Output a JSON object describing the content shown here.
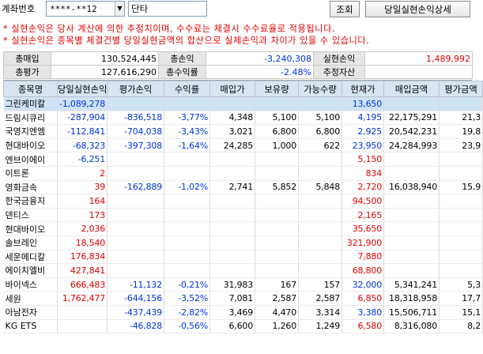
{
  "header": {
    "account_label": "계좌번호",
    "account_number": "****-**12",
    "account_name": "단타",
    "query_button": "조회",
    "detail_button": "당일실현손익상세"
  },
  "notices": [
    "* 실현손익은 당사 계산에 의한 추정치이며, 수수료는 체결시 수수료율로 적용됩니다.",
    "* 실현손익은 종목별 체결건별 당일실현금액의 합산으로 실제손익과 차이가 있을 수 있습니다."
  ],
  "summary": {
    "total_buy_label": "총매입",
    "total_buy": "130,524,445",
    "total_pl_label": "총손익",
    "total_pl": "-3,240,308",
    "realized_pl_label": "실현손익",
    "realized_pl": "1,489,992",
    "total_eval_label": "총평가",
    "total_eval": "127,616,290",
    "total_return_label": "총수익률",
    "total_return": "-2.48%",
    "est_asset_label": "추정자산",
    "est_asset": ""
  },
  "columns": [
    "종목명",
    "당일실현손익",
    "평가손익",
    "수익률",
    "매입가",
    "보유량",
    "가능수량",
    "현재가",
    "매입금액",
    "평가금액"
  ],
  "rows": [
    {
      "name": "그린케미칼",
      "realized": "-1,089,278",
      "eval_pl": "",
      "ret": "",
      "buy_price": "",
      "qty": "",
      "avail": "",
      "cur": "13,650",
      "buy_amt": "",
      "eval_amt": "",
      "rc": "blue",
      "ec": "blk",
      "cc": "blue",
      "selected": true
    },
    {
      "name": "드림시큐리",
      "realized": "-287,904",
      "eval_pl": "-836,518",
      "ret": "-3,77%",
      "buy_price": "4,348",
      "qty": "5,100",
      "avail": "5,100",
      "cur": "4,195",
      "buy_amt": "22,175,291",
      "eval_amt": "21,3",
      "rc": "blue",
      "ec": "blue",
      "cc": "blue",
      "selected": false
    },
    {
      "name": "국영지엔엠",
      "realized": "-112,841",
      "eval_pl": "-704,038",
      "ret": "-3,43%",
      "buy_price": "3,021",
      "qty": "6,800",
      "avail": "6,800",
      "cur": "2,925",
      "buy_amt": "20,542,231",
      "eval_amt": "19,8",
      "rc": "blue",
      "ec": "blue",
      "cc": "blue",
      "selected": false
    },
    {
      "name": "현대바이오",
      "realized": "-68,323",
      "eval_pl": "-397,308",
      "ret": "-1,64%",
      "buy_price": "24,285",
      "qty": "1,000",
      "avail": "622",
      "cur": "23,950",
      "buy_amt": "24,284,993",
      "eval_amt": "23,9",
      "rc": "blue",
      "ec": "blue",
      "cc": "blue",
      "selected": false
    },
    {
      "name": "엔브이에이",
      "realized": "-6,251",
      "eval_pl": "",
      "ret": "",
      "buy_price": "",
      "qty": "",
      "avail": "",
      "cur": "5,150",
      "buy_amt": "",
      "eval_amt": "",
      "rc": "blue",
      "ec": "blk",
      "cc": "red",
      "selected": false
    },
    {
      "name": "이트론",
      "realized": "2",
      "eval_pl": "",
      "ret": "",
      "buy_price": "",
      "qty": "",
      "avail": "",
      "cur": "834",
      "buy_amt": "",
      "eval_amt": "",
      "rc": "red",
      "ec": "blk",
      "cc": "red",
      "selected": false
    },
    {
      "name": "영화금속",
      "realized": "39",
      "eval_pl": "-162,889",
      "ret": "-1,02%",
      "buy_price": "2,741",
      "qty": "5,852",
      "avail": "5,848",
      "cur": "2,720",
      "buy_amt": "16,038,940",
      "eval_amt": "15,9",
      "rc": "red",
      "ec": "blue",
      "cc": "red",
      "selected": false
    },
    {
      "name": "한국금융지",
      "realized": "164",
      "eval_pl": "",
      "ret": "",
      "buy_price": "",
      "qty": "",
      "avail": "",
      "cur": "94,500",
      "buy_amt": "",
      "eval_amt": "",
      "rc": "red",
      "ec": "blk",
      "cc": "red",
      "selected": false
    },
    {
      "name": "덴티스",
      "realized": "173",
      "eval_pl": "",
      "ret": "",
      "buy_price": "",
      "qty": "",
      "avail": "",
      "cur": "2,165",
      "buy_amt": "",
      "eval_amt": "",
      "rc": "red",
      "ec": "blk",
      "cc": "red",
      "selected": false
    },
    {
      "name": "현대바이오",
      "realized": "2,036",
      "eval_pl": "",
      "ret": "",
      "buy_price": "",
      "qty": "",
      "avail": "",
      "cur": "35,650",
      "buy_amt": "",
      "eval_amt": "",
      "rc": "red",
      "ec": "blk",
      "cc": "red",
      "selected": false
    },
    {
      "name": "솔브레인",
      "realized": "18,540",
      "eval_pl": "",
      "ret": "",
      "buy_price": "",
      "qty": "",
      "avail": "",
      "cur": "321,900",
      "buy_amt": "",
      "eval_amt": "",
      "rc": "red",
      "ec": "blk",
      "cc": "red",
      "selected": false
    },
    {
      "name": "세운메디칼",
      "realized": "176,834",
      "eval_pl": "",
      "ret": "",
      "buy_price": "",
      "qty": "",
      "avail": "",
      "cur": "7,880",
      "buy_amt": "",
      "eval_amt": "",
      "rc": "red",
      "ec": "blk",
      "cc": "red",
      "selected": false
    },
    {
      "name": "에이치엘비",
      "realized": "427,841",
      "eval_pl": "",
      "ret": "",
      "buy_price": "",
      "qty": "",
      "avail": "",
      "cur": "68,800",
      "buy_amt": "",
      "eval_amt": "",
      "rc": "red",
      "ec": "blk",
      "cc": "red",
      "selected": false
    },
    {
      "name": "바이넥스",
      "realized": "666,483",
      "eval_pl": "-11,132",
      "ret": "-0,21%",
      "buy_price": "31,983",
      "qty": "167",
      "avail": "157",
      "cur": "32,000",
      "buy_amt": "5,341,241",
      "eval_amt": "5,3",
      "rc": "red",
      "ec": "blue",
      "cc": "blue",
      "selected": false
    },
    {
      "name": "세원",
      "realized": "1,762,477",
      "eval_pl": "-644,156",
      "ret": "-3,52%",
      "buy_price": "7,081",
      "qty": "2,587",
      "avail": "2,587",
      "cur": "6,850",
      "buy_amt": "18,318,958",
      "eval_amt": "17,7",
      "rc": "red",
      "ec": "blue",
      "cc": "red",
      "selected": false
    },
    {
      "name": "아남전자",
      "realized": "",
      "eval_pl": "-437,439",
      "ret": "-2,82%",
      "buy_price": "3,469",
      "qty": "4,470",
      "avail": "3,314",
      "cur": "3,380",
      "buy_amt": "15,506,711",
      "eval_amt": "15,1",
      "rc": "blk",
      "ec": "blue",
      "cc": "blue",
      "selected": false
    },
    {
      "name": "KG ETS",
      "realized": "",
      "eval_pl": "-46,828",
      "ret": "-0,56%",
      "buy_price": "6,600",
      "qty": "1,260",
      "avail": "1,249",
      "cur": "6,580",
      "buy_amt": "8,316,080",
      "eval_amt": "8,2",
      "rc": "blk",
      "ec": "blue",
      "cc": "red",
      "selected": false
    }
  ]
}
